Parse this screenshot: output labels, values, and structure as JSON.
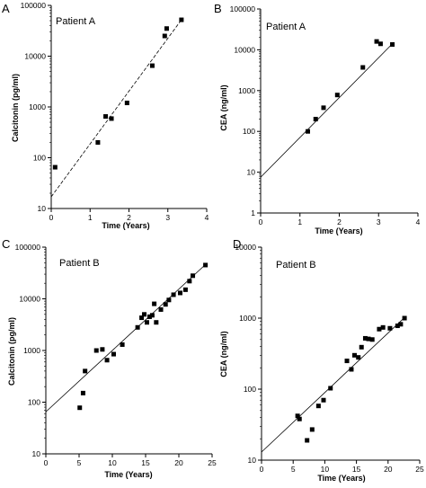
{
  "colors": {
    "background": "#ffffff",
    "ink": "#000000"
  },
  "chart_data": [
    {
      "panel_label": "A",
      "type": "scatter",
      "title": "Patient A",
      "xlabel": "Time (Years)",
      "ylabel": "Calcitonin (pg/ml)",
      "xlim": [
        0,
        4
      ],
      "ylim": [
        10,
        100000
      ],
      "yscale": "log",
      "xticks": [
        "0",
        "1",
        "2",
        "3",
        "4"
      ],
      "yticks": [
        "10",
        "100",
        "1000",
        "10000",
        "100000"
      ],
      "points": [
        {
          "x": 0.1,
          "y": 65
        },
        {
          "x": 1.2,
          "y": 200
        },
        {
          "x": 1.4,
          "y": 650
        },
        {
          "x": 1.55,
          "y": 590
        },
        {
          "x": 1.95,
          "y": 1200
        },
        {
          "x": 2.6,
          "y": 6500
        },
        {
          "x": 2.92,
          "y": 25000
        },
        {
          "x": 2.97,
          "y": 35000
        },
        {
          "x": 3.35,
          "y": 52000
        }
      ],
      "trendline": {
        "x": [
          0,
          3.35
        ],
        "y": [
          17,
          52000
        ],
        "style": "dashed"
      }
    },
    {
      "panel_label": "B",
      "type": "scatter",
      "title": "Patient A",
      "xlabel": "Time (Years)",
      "ylabel": "CEA (ng/ml)",
      "xlim": [
        0,
        4
      ],
      "ylim": [
        1,
        100000
      ],
      "yscale": "log",
      "xticks": [
        "0",
        "1",
        "2",
        "3",
        "4"
      ],
      "yticks": [
        "1",
        "10",
        "100",
        "1000",
        "10000",
        "100000"
      ],
      "points": [
        {
          "x": 1.2,
          "y": 100
        },
        {
          "x": 1.4,
          "y": 200
        },
        {
          "x": 1.6,
          "y": 380
        },
        {
          "x": 1.95,
          "y": 780
        },
        {
          "x": 2.6,
          "y": 3700
        },
        {
          "x": 2.95,
          "y": 16000
        },
        {
          "x": 3.05,
          "y": 14000
        },
        {
          "x": 3.35,
          "y": 13500
        }
      ],
      "trendline": {
        "x": [
          0,
          3.35
        ],
        "y": [
          7.5,
          14000
        ],
        "style": "solid"
      }
    },
    {
      "panel_label": "C",
      "type": "scatter",
      "title": "Patient B",
      "xlabel": "Time (Years)",
      "ylabel": "Calcitonin (pg/ml)",
      "xlim": [
        0,
        25
      ],
      "ylim": [
        10,
        100000
      ],
      "yscale": "log",
      "xticks": [
        "0",
        "5",
        "10",
        "15",
        "20",
        "25"
      ],
      "yticks": [
        "10",
        "100",
        "1000",
        "10000",
        "100000"
      ],
      "points": [
        {
          "x": 5.1,
          "y": 78
        },
        {
          "x": 5.6,
          "y": 150
        },
        {
          "x": 5.9,
          "y": 400
        },
        {
          "x": 7.6,
          "y": 1000
        },
        {
          "x": 8.5,
          "y": 1050
        },
        {
          "x": 9.2,
          "y": 650
        },
        {
          "x": 10.2,
          "y": 850
        },
        {
          "x": 11.5,
          "y": 1300
        },
        {
          "x": 13.8,
          "y": 2800
        },
        {
          "x": 14.4,
          "y": 4300
        },
        {
          "x": 14.8,
          "y": 5000
        },
        {
          "x": 15.2,
          "y": 3500
        },
        {
          "x": 15.6,
          "y": 4500
        },
        {
          "x": 16.0,
          "y": 4800
        },
        {
          "x": 16.3,
          "y": 8000
        },
        {
          "x": 16.6,
          "y": 3500
        },
        {
          "x": 17.3,
          "y": 6200
        },
        {
          "x": 18.0,
          "y": 7800
        },
        {
          "x": 18.5,
          "y": 9500
        },
        {
          "x": 19.2,
          "y": 12000
        },
        {
          "x": 20.2,
          "y": 13000
        },
        {
          "x": 21.0,
          "y": 15000
        },
        {
          "x": 21.6,
          "y": 22000
        },
        {
          "x": 22.1,
          "y": 28000
        },
        {
          "x": 24.0,
          "y": 45000
        }
      ],
      "trendline": {
        "x": [
          0,
          24
        ],
        "y": [
          65,
          46000
        ],
        "style": "solid"
      }
    },
    {
      "panel_label": "D",
      "type": "scatter",
      "title": "Patient B",
      "xlabel": "Time (Years)",
      "ylabel": "CEA (ng/ml)",
      "xlim": [
        0,
        25
      ],
      "ylim": [
        10,
        10000
      ],
      "yscale": "log",
      "xticks": [
        "0",
        "5",
        "10",
        "15",
        "20",
        "25"
      ],
      "yticks": [
        "10",
        "100",
        "1000",
        "10000"
      ],
      "points": [
        {
          "x": 5.7,
          "y": 42
        },
        {
          "x": 6.0,
          "y": 38
        },
        {
          "x": 7.2,
          "y": 19
        },
        {
          "x": 8.0,
          "y": 27
        },
        {
          "x": 9.0,
          "y": 58
        },
        {
          "x": 9.8,
          "y": 70
        },
        {
          "x": 10.9,
          "y": 103
        },
        {
          "x": 13.5,
          "y": 250
        },
        {
          "x": 14.2,
          "y": 190
        },
        {
          "x": 14.7,
          "y": 300
        },
        {
          "x": 15.3,
          "y": 280
        },
        {
          "x": 15.8,
          "y": 390
        },
        {
          "x": 16.4,
          "y": 520
        },
        {
          "x": 16.9,
          "y": 510
        },
        {
          "x": 17.5,
          "y": 500
        },
        {
          "x": 18.6,
          "y": 700
        },
        {
          "x": 19.2,
          "y": 740
        },
        {
          "x": 20.3,
          "y": 720
        },
        {
          "x": 21.5,
          "y": 780
        },
        {
          "x": 22.0,
          "y": 820
        },
        {
          "x": 22.6,
          "y": 1000
        }
      ],
      "trendline": {
        "x": [
          0,
          22.6
        ],
        "y": [
          13,
          1020
        ],
        "style": "solid"
      }
    }
  ]
}
